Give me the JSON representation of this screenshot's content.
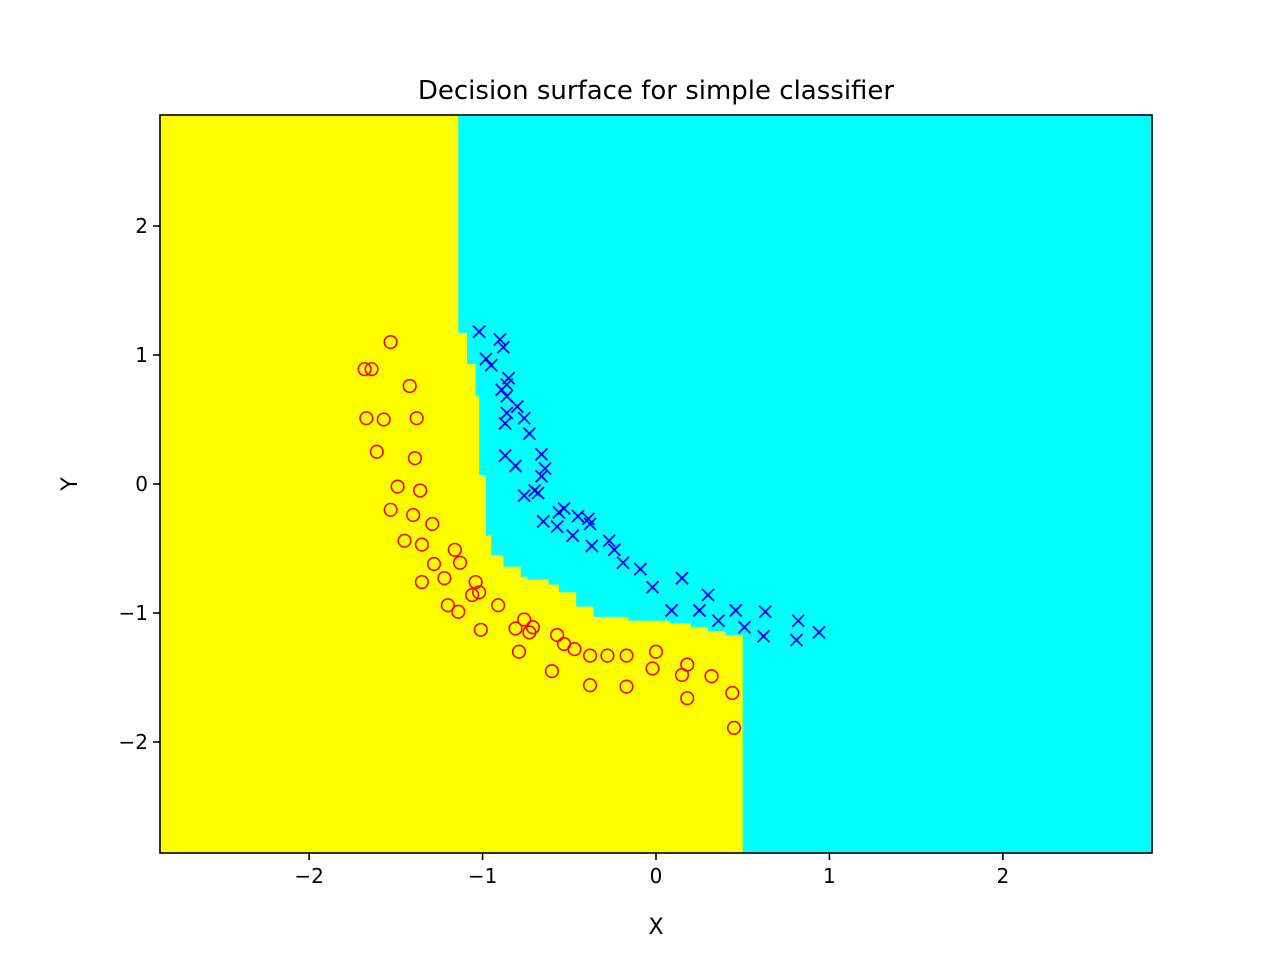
{
  "chart_data": {
    "type": "scatter",
    "title": "Decision surface for simple classifier",
    "xlabel": "X",
    "ylabel": "Y",
    "xlim": [
      -2.86,
      2.86
    ],
    "ylim": [
      -2.86,
      2.86
    ],
    "xticks": [
      -2,
      -1,
      0,
      1,
      2
    ],
    "yticks": [
      -2,
      -1,
      0,
      1,
      2
    ],
    "grid": false,
    "legend": "none",
    "region_colors": {
      "class_0": "#ffff00",
      "class_1": "#00ffff"
    },
    "decision_boundary": [
      [
        -1.14,
        2.86
      ],
      [
        -1.14,
        1.17
      ],
      [
        -1.09,
        1.17
      ],
      [
        -1.09,
        0.93
      ],
      [
        -1.04,
        0.93
      ],
      [
        -1.04,
        0.68
      ],
      [
        -1.02,
        0.68
      ],
      [
        -1.02,
        0.07
      ],
      [
        -0.98,
        0.07
      ],
      [
        -0.98,
        -0.4
      ],
      [
        -0.95,
        -0.4
      ],
      [
        -0.95,
        -0.55
      ],
      [
        -0.88,
        -0.55
      ],
      [
        -0.88,
        -0.64
      ],
      [
        -0.78,
        -0.64
      ],
      [
        -0.78,
        -0.72
      ],
      [
        -0.74,
        -0.72
      ],
      [
        -0.74,
        -0.74
      ],
      [
        -0.62,
        -0.74
      ],
      [
        -0.62,
        -0.78
      ],
      [
        -0.56,
        -0.78
      ],
      [
        -0.56,
        -0.84
      ],
      [
        -0.46,
        -0.84
      ],
      [
        -0.46,
        -0.95
      ],
      [
        -0.36,
        -0.95
      ],
      [
        -0.36,
        -1.03
      ],
      [
        -0.16,
        -1.03
      ],
      [
        -0.16,
        -1.06
      ],
      [
        0.08,
        -1.06
      ],
      [
        0.08,
        -1.08
      ],
      [
        0.2,
        -1.08
      ],
      [
        0.2,
        -1.11
      ],
      [
        0.3,
        -1.11
      ],
      [
        0.3,
        -1.14
      ],
      [
        0.4,
        -1.14
      ],
      [
        0.4,
        -1.17
      ],
      [
        0.5,
        -1.17
      ],
      [
        0.5,
        -2.86
      ]
    ],
    "series": [
      {
        "marker": "circle",
        "color": "#ff0000",
        "points": [
          [
            -1.53,
            1.1
          ],
          [
            -1.68,
            0.89
          ],
          [
            -1.64,
            0.89
          ],
          [
            -1.42,
            0.76
          ],
          [
            -1.67,
            0.51
          ],
          [
            -1.57,
            0.5
          ],
          [
            -1.38,
            0.51
          ],
          [
            -1.61,
            0.25
          ],
          [
            -1.39,
            0.2
          ],
          [
            -1.49,
            -0.02
          ],
          [
            -1.36,
            -0.05
          ],
          [
            -1.53,
            -0.2
          ],
          [
            -1.4,
            -0.24
          ],
          [
            -1.29,
            -0.31
          ],
          [
            -1.45,
            -0.44
          ],
          [
            -1.35,
            -0.47
          ],
          [
            -1.16,
            -0.51
          ],
          [
            -1.28,
            -0.62
          ],
          [
            -1.13,
            -0.61
          ],
          [
            -1.22,
            -0.73
          ],
          [
            -1.35,
            -0.76
          ],
          [
            -1.04,
            -0.76
          ],
          [
            -1.02,
            -0.84
          ],
          [
            -1.06,
            -0.86
          ],
          [
            -1.2,
            -0.94
          ],
          [
            -0.91,
            -0.94
          ],
          [
            -1.14,
            -0.99
          ],
          [
            -0.76,
            -1.05
          ],
          [
            -0.71,
            -1.11
          ],
          [
            -0.81,
            -1.12
          ],
          [
            -0.73,
            -1.15
          ],
          [
            -1.01,
            -1.13
          ],
          [
            -0.57,
            -1.17
          ],
          [
            -0.53,
            -1.24
          ],
          [
            -0.47,
            -1.28
          ],
          [
            -0.38,
            -1.33
          ],
          [
            -0.28,
            -1.33
          ],
          [
            -0.17,
            -1.33
          ],
          [
            0.0,
            -1.3
          ],
          [
            -0.79,
            -1.3
          ],
          [
            -0.02,
            -1.43
          ],
          [
            0.18,
            -1.4
          ],
          [
            0.15,
            -1.48
          ],
          [
            0.32,
            -1.49
          ],
          [
            -0.6,
            -1.45
          ],
          [
            -0.38,
            -1.56
          ],
          [
            -0.17,
            -1.57
          ],
          [
            0.18,
            -1.66
          ],
          [
            0.44,
            -1.62
          ],
          [
            0.45,
            -1.89
          ]
        ]
      },
      {
        "marker": "x",
        "color": "#0000ff",
        "points": [
          [
            -1.02,
            1.18
          ],
          [
            -0.9,
            1.12
          ],
          [
            -0.88,
            1.06
          ],
          [
            -0.98,
            0.97
          ],
          [
            -0.95,
            0.92
          ],
          [
            -0.85,
            0.82
          ],
          [
            -0.86,
            0.77
          ],
          [
            -0.89,
            0.73
          ],
          [
            -0.86,
            0.68
          ],
          [
            -0.8,
            0.6
          ],
          [
            -0.86,
            0.55
          ],
          [
            -0.76,
            0.51
          ],
          [
            -0.87,
            0.47
          ],
          [
            -0.73,
            0.39
          ],
          [
            -0.87,
            0.22
          ],
          [
            -0.66,
            0.23
          ],
          [
            -0.64,
            0.12
          ],
          [
            -0.81,
            0.14
          ],
          [
            -0.66,
            0.06
          ],
          [
            -0.7,
            -0.05
          ],
          [
            -0.68,
            -0.07
          ],
          [
            -0.76,
            -0.09
          ],
          [
            -0.53,
            -0.19
          ],
          [
            -0.56,
            -0.22
          ],
          [
            -0.45,
            -0.25
          ],
          [
            -0.39,
            -0.27
          ],
          [
            -0.38,
            -0.31
          ],
          [
            -0.57,
            -0.33
          ],
          [
            -0.65,
            -0.29
          ],
          [
            -0.48,
            -0.4
          ],
          [
            -0.27,
            -0.44
          ],
          [
            -0.37,
            -0.48
          ],
          [
            -0.24,
            -0.51
          ],
          [
            -0.19,
            -0.61
          ],
          [
            -0.09,
            -0.66
          ],
          [
            -0.02,
            -0.8
          ],
          [
            0.15,
            -0.73
          ],
          [
            0.3,
            -0.86
          ],
          [
            0.09,
            -0.98
          ],
          [
            0.25,
            -0.98
          ],
          [
            0.46,
            -0.98
          ],
          [
            0.63,
            -0.99
          ],
          [
            0.82,
            -1.06
          ],
          [
            0.36,
            -1.06
          ],
          [
            0.51,
            -1.11
          ],
          [
            0.94,
            -1.15
          ],
          [
            0.62,
            -1.18
          ],
          [
            0.81,
            -1.21
          ]
        ]
      }
    ]
  }
}
